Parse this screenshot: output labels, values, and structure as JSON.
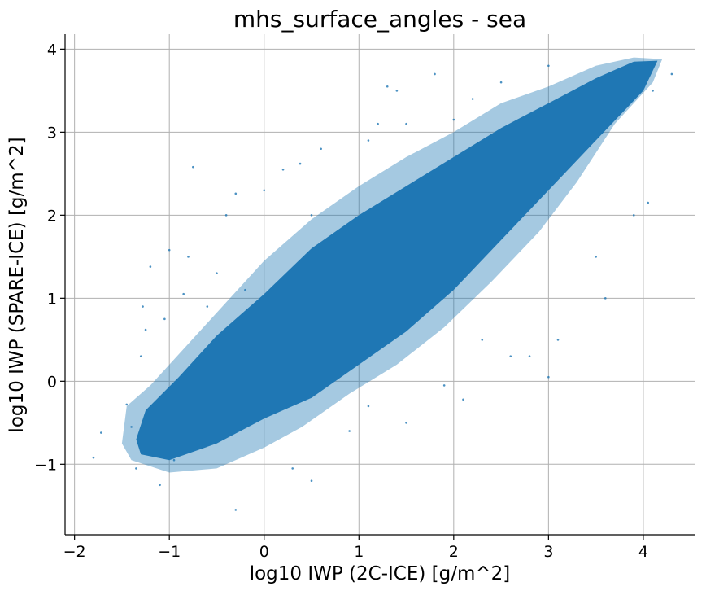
{
  "chart_data": {
    "type": "scatter",
    "title": "mhs_surface_angles - sea",
    "xlabel": "log10 IWP (2C-ICE) [g/m^2]",
    "ylabel": "log10 IWP (SPARE-ICE) [g/m^2]",
    "xlim": [
      -2.1,
      4.55
    ],
    "ylim": [
      -1.85,
      4.18
    ],
    "xticks": [
      -2,
      -1,
      0,
      1,
      2,
      3,
      4
    ],
    "yticks": [
      -1,
      0,
      1,
      2,
      3,
      4
    ],
    "xtick_labels": [
      "−2",
      "−1",
      "0",
      "1",
      "2",
      "3",
      "4"
    ],
    "ytick_labels": [
      "−1",
      "0",
      "1",
      "2",
      "3",
      "4"
    ],
    "grid": true,
    "marker_color": "#1f77b4",
    "series": [
      {
        "points": [
          [
            -1.8,
            -0.92
          ],
          [
            -1.72,
            -0.62
          ],
          [
            -1.45,
            -0.28
          ],
          [
            -1.4,
            -0.55
          ],
          [
            -1.35,
            -1.05
          ],
          [
            -1.3,
            0.3
          ],
          [
            -1.28,
            0.9
          ],
          [
            -1.25,
            0.62
          ],
          [
            -1.2,
            1.38
          ],
          [
            -1.1,
            -1.25
          ],
          [
            -1.05,
            0.75
          ],
          [
            -1.0,
            1.58
          ],
          [
            -0.95,
            -0.95
          ],
          [
            -0.85,
            1.05
          ],
          [
            -0.8,
            1.5
          ],
          [
            -0.75,
            2.58
          ],
          [
            -0.6,
            0.9
          ],
          [
            -0.5,
            1.3
          ],
          [
            -0.4,
            2.0
          ],
          [
            -0.3,
            -1.55
          ],
          [
            -0.3,
            2.26
          ],
          [
            -0.2,
            1.1
          ],
          [
            0.0,
            2.3
          ],
          [
            0.2,
            2.55
          ],
          [
            0.3,
            -1.05
          ],
          [
            0.38,
            2.62
          ],
          [
            0.5,
            -1.2
          ],
          [
            0.5,
            2.0
          ],
          [
            0.6,
            2.8
          ],
          [
            0.9,
            -0.6
          ],
          [
            1.1,
            -0.3
          ],
          [
            1.1,
            2.9
          ],
          [
            1.2,
            3.1
          ],
          [
            1.3,
            3.55
          ],
          [
            1.4,
            3.5
          ],
          [
            1.5,
            3.1
          ],
          [
            1.5,
            -0.5
          ],
          [
            1.8,
            3.7
          ],
          [
            1.9,
            -0.05
          ],
          [
            2.0,
            3.15
          ],
          [
            2.1,
            -0.22
          ],
          [
            2.2,
            3.4
          ],
          [
            2.3,
            0.5
          ],
          [
            2.6,
            0.3
          ],
          [
            2.5,
            3.6
          ],
          [
            2.8,
            0.3
          ],
          [
            3.0,
            0.05
          ],
          [
            3.0,
            3.8
          ],
          [
            3.1,
            0.5
          ],
          [
            3.5,
            1.5
          ],
          [
            3.6,
            1.0
          ],
          [
            3.9,
            2.0
          ],
          [
            4.05,
            2.15
          ],
          [
            4.1,
            3.5
          ],
          [
            4.3,
            3.7
          ]
        ]
      }
    ]
  }
}
